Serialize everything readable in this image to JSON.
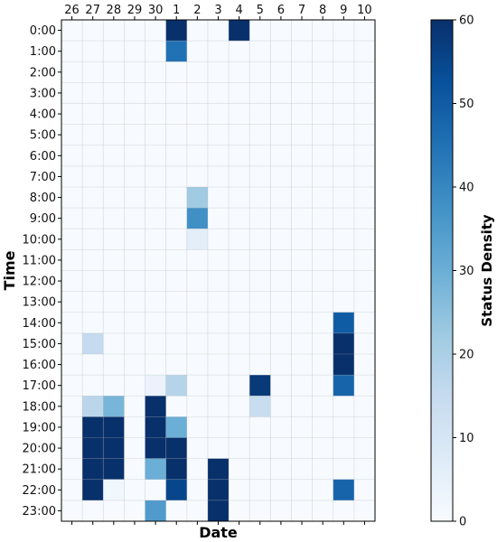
{
  "chart_data": {
    "type": "heatmap",
    "xlabel": "Date",
    "ylabel": "Time",
    "colorbar_label": "Status Density",
    "x_categories": [
      "26",
      "27",
      "28",
      "29",
      "30",
      "1",
      "2",
      "3",
      "4",
      "5",
      "6",
      "7",
      "8",
      "9",
      "10"
    ],
    "y_categories": [
      "0:00",
      "1:00",
      "2:00",
      "3:00",
      "4:00",
      "5:00",
      "6:00",
      "7:00",
      "8:00",
      "9:00",
      "10:00",
      "11:00",
      "12:00",
      "13:00",
      "14:00",
      "15:00",
      "16:00",
      "17:00",
      "18:00",
      "19:00",
      "20:00",
      "21:00",
      "22:00",
      "23:00"
    ],
    "value_range": [
      0,
      60
    ],
    "colorbar_ticks": [
      0,
      10,
      20,
      30,
      40,
      50,
      60
    ],
    "colormap": [
      "#f7fbff",
      "#deebf7",
      "#c6dbef",
      "#9ecae1",
      "#6baed6",
      "#4292c6",
      "#2171b5",
      "#08519c",
      "#08306b"
    ],
    "grid": true,
    "cells": [
      {
        "x": "1",
        "y": "0:00",
        "value": 60
      },
      {
        "x": "4",
        "y": "0:00",
        "value": 60
      },
      {
        "x": "1",
        "y": "1:00",
        "value": 45
      },
      {
        "x": "2",
        "y": "8:00",
        "value": 22
      },
      {
        "x": "2",
        "y": "9:00",
        "value": 38
      },
      {
        "x": "2",
        "y": "10:00",
        "value": 6
      },
      {
        "x": "9",
        "y": "14:00",
        "value": 50
      },
      {
        "x": "27",
        "y": "15:00",
        "value": 15
      },
      {
        "x": "9",
        "y": "15:00",
        "value": 60
      },
      {
        "x": "9",
        "y": "16:00",
        "value": 60
      },
      {
        "x": "30",
        "y": "17:00",
        "value": 4
      },
      {
        "x": "1",
        "y": "17:00",
        "value": 18
      },
      {
        "x": "5",
        "y": "17:00",
        "value": 58
      },
      {
        "x": "9",
        "y": "17:00",
        "value": 48
      },
      {
        "x": "27",
        "y": "18:00",
        "value": 17
      },
      {
        "x": "28",
        "y": "18:00",
        "value": 28
      },
      {
        "x": "30",
        "y": "18:00",
        "value": 60
      },
      {
        "x": "5",
        "y": "18:00",
        "value": 14
      },
      {
        "x": "27",
        "y": "19:00",
        "value": 60
      },
      {
        "x": "28",
        "y": "19:00",
        "value": 60
      },
      {
        "x": "30",
        "y": "19:00",
        "value": 60
      },
      {
        "x": "1",
        "y": "19:00",
        "value": 30
      },
      {
        "x": "27",
        "y": "20:00",
        "value": 60
      },
      {
        "x": "28",
        "y": "20:00",
        "value": 60
      },
      {
        "x": "30",
        "y": "20:00",
        "value": 60
      },
      {
        "x": "1",
        "y": "20:00",
        "value": 60
      },
      {
        "x": "27",
        "y": "21:00",
        "value": 60
      },
      {
        "x": "28",
        "y": "21:00",
        "value": 60
      },
      {
        "x": "30",
        "y": "21:00",
        "value": 30
      },
      {
        "x": "1",
        "y": "21:00",
        "value": 60
      },
      {
        "x": "3",
        "y": "21:00",
        "value": 60
      },
      {
        "x": "27",
        "y": "22:00",
        "value": 60
      },
      {
        "x": "28",
        "y": "22:00",
        "value": 2
      },
      {
        "x": "1",
        "y": "22:00",
        "value": 55
      },
      {
        "x": "3",
        "y": "22:00",
        "value": 60
      },
      {
        "x": "9",
        "y": "22:00",
        "value": 48
      },
      {
        "x": "30",
        "y": "23:00",
        "value": 35
      },
      {
        "x": "3",
        "y": "23:00",
        "value": 60
      }
    ]
  }
}
